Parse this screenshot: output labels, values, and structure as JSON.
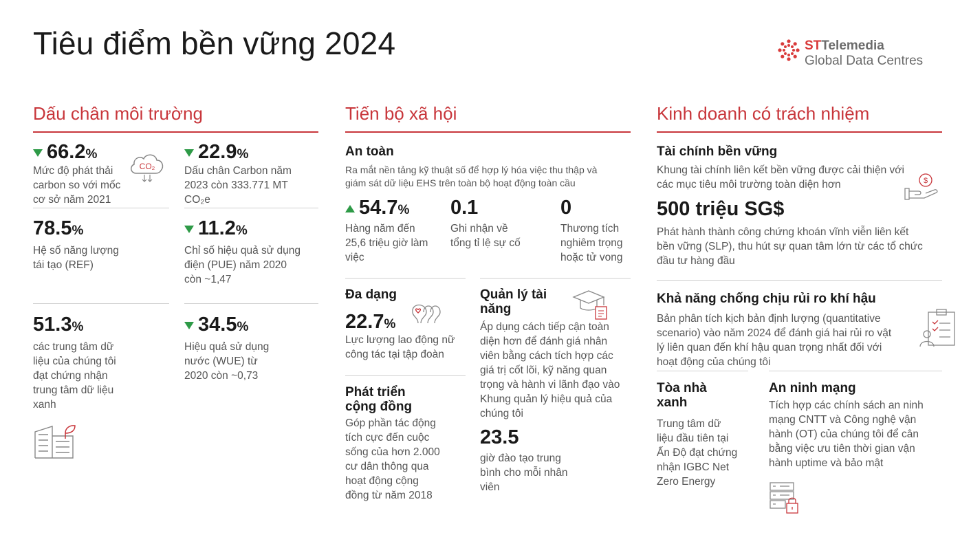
{
  "page_title": "Tiêu điểm bền vững 2024",
  "logo": {
    "brand_prefix": "ST",
    "brand_rest": "Telemedia",
    "line2": "Global Data Centres"
  },
  "colors": {
    "accent": "#c8363b",
    "green": "#2e9a47",
    "gray": "#6b6b6b"
  },
  "env": {
    "heading": "Dấu chân môi trường",
    "co2_icon_label": "CO₂",
    "m1": {
      "value": "66.2",
      "unit": "%",
      "trend": "down",
      "desc": [
        "Mức độ phát thải",
        "carbon so với mốc",
        "cơ sở năm 2021"
      ]
    },
    "m2": {
      "value": "22.9",
      "unit": "%",
      "trend": "down",
      "desc": [
        "Dấu chân Carbon năm",
        "2023 còn 333.771 MT",
        "CO₂e"
      ]
    },
    "m3": {
      "value": "78.5",
      "unit": "%",
      "desc": [
        "Hệ số năng lượng",
        "tái tạo (REF)"
      ]
    },
    "m4": {
      "value": "11.2",
      "unit": "%",
      "trend": "down",
      "desc": [
        "Chỉ số hiệu quả sử dụng",
        "điện (PUE) năm 2020",
        "còn ~1,47"
      ]
    },
    "m5": {
      "value": "51.3",
      "unit": "%",
      "desc": [
        "các trung tâm dữ",
        "liệu của chúng tôi",
        "đạt chứng nhận",
        "trung tâm dữ liệu",
        "xanh"
      ]
    },
    "m6": {
      "value": "34.5",
      "unit": "%",
      "trend": "down",
      "desc": [
        "Hiệu quả sử dụng",
        "nước (WUE) từ",
        "2020 còn ~0,73"
      ]
    }
  },
  "social": {
    "heading": "Tiến bộ xã hội",
    "safety": {
      "title": "An toàn",
      "desc": [
        "Ra mắt nền tảng kỹ thuật số để hợp lý hóa việc thu thập và",
        "giám sát dữ liệu EHS trên toàn bộ hoạt động toàn cầu"
      ],
      "s1": {
        "value": "54.7",
        "unit": "%",
        "trend": "up",
        "desc": [
          "Hàng năm đến",
          "25,6 triệu giờ làm",
          "việc"
        ]
      },
      "s2": {
        "value": "0.1",
        "desc": [
          "Ghi nhận về",
          "tổng tỉ lệ sự cố"
        ]
      },
      "s3": {
        "value": "0",
        "desc": [
          "Thương tích",
          "nghiêm trọng",
          "hoặc tử vong"
        ]
      }
    },
    "diversity": {
      "title": "Đa dạng",
      "value": "22.7",
      "unit": "%",
      "desc": [
        "Lực lượng lao động nữ",
        "công tác tại tập đoàn"
      ]
    },
    "community": {
      "title": [
        "Phát triển",
        "cộng đồng"
      ],
      "desc": [
        "Góp phần tác động",
        "tích cực đến cuộc",
        "sống của hơn 2.000",
        "cư dân thông qua",
        "hoạt động cộng",
        "đồng từ năm 2018"
      ]
    },
    "talent": {
      "title": [
        "Quản lý tài",
        "năng"
      ],
      "desc": [
        "Áp dụng cách tiếp cận toàn",
        "diện hơn để đánh giá nhân",
        "viên bằng cách tích hợp các",
        "giá trị cốt lõi, kỹ năng quan",
        "trọng và hành vi lãnh đạo vào",
        "Khung quản lý hiệu quả của",
        "chúng tôi"
      ],
      "value": "23.5",
      "value_desc": [
        "giờ đào tạo trung",
        "bình cho mỗi nhân",
        "viên"
      ]
    }
  },
  "business": {
    "heading": "Kinh doanh có trách nhiệm",
    "finance": {
      "title": "Tài chính bền vững",
      "desc": [
        "Khung tài chính liên kết bền vững được cải thiện với",
        "các mục tiêu môi trường toàn diện hơn"
      ],
      "value": "500 triệu SG$",
      "value_desc": [
        "Phát hành thành công chứng khoán vĩnh viễn liên kết",
        "bền vững (SLP), thu hút sự quan tâm lớn từ các tổ chức",
        "đầu tư hàng đầu"
      ]
    },
    "climate": {
      "title": "Khả năng chống chịu rủi ro khí hậu",
      "desc": [
        "Bản phân tích kịch bản định lượng (quantitative",
        "scenario) vào năm 2024 để đánh giá hai rủi ro vật",
        "lý liên quan đến khí hậu quan trọng nhất đối với",
        "hoạt động của chúng tôi"
      ]
    },
    "green_building": {
      "title": [
        "Tòa nhà",
        "xanh"
      ],
      "desc": [
        "Trung tâm dữ",
        "liệu đầu tiên tại",
        "Ấn Độ đạt chứng",
        "nhận IGBC Net",
        "Zero Energy"
      ]
    },
    "cyber": {
      "title": "An ninh mạng",
      "desc": [
        "Tích hợp các chính sách an ninh",
        "mạng CNTT và Công nghệ vận",
        "hành (OT) của chúng tôi để cân",
        "bằng việc ưu tiên thời gian vận",
        "hành uptime và bảo mật"
      ]
    }
  }
}
